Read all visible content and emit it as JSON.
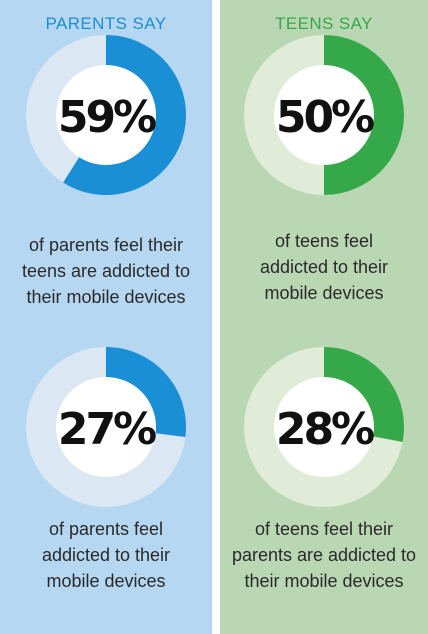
{
  "colors": {
    "left_bg": "#b6d7f1",
    "left_accent": "#1a8fd6",
    "left_track": "#dbe8f3",
    "right_bg": "#b9d7b2",
    "right_accent": "#35a84a",
    "right_track": "#e0ecd8",
    "donut_center": "#ffffff",
    "percent_text": "#111111"
  },
  "panels": [
    {
      "title": "PARENTS SAY",
      "charts": [
        {
          "percent_label": "59%",
          "caption_lines": [
            "of parents feel their",
            "teens are addicted to",
            "their mobile devices"
          ]
        },
        {
          "percent_label": "27%",
          "caption_lines": [
            "of parents feel",
            "addicted to their",
            "mobile devices"
          ]
        }
      ]
    },
    {
      "title": "TEENS SAY",
      "charts": [
        {
          "percent_label": "50%",
          "caption_lines": [
            "of teens feel",
            "addicted to their",
            "mobile devices"
          ]
        },
        {
          "percent_label": "28%",
          "caption_lines": [
            "of teens feel their",
            "parents are addicted to",
            "their mobile devices"
          ]
        }
      ]
    }
  ],
  "chart_data": [
    {
      "type": "pie",
      "values": [
        59,
        41
      ],
      "categories": [
        "feel their teens are addicted",
        "remainder"
      ]
    },
    {
      "type": "pie",
      "values": [
        27,
        73
      ],
      "categories": [
        "feel addicted",
        "remainder"
      ]
    },
    {
      "type": "pie",
      "values": [
        50,
        50
      ],
      "categories": [
        "feel addicted",
        "remainder"
      ]
    },
    {
      "type": "pie",
      "values": [
        28,
        72
      ],
      "categories": [
        "feel their parents are addicted",
        "remainder"
      ]
    }
  ]
}
